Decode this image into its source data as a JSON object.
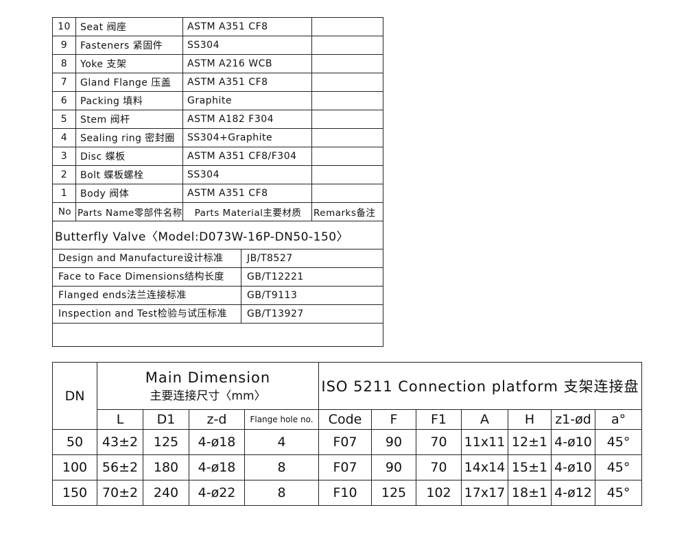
{
  "parts_table": {
    "rows": [
      {
        "no": "10",
        "name": "Seat 阀座",
        "material": "ASTM A351 CF8",
        "remarks": ""
      },
      {
        "no": "9",
        "name": "Fasteners 紧固件",
        "material": "SS304",
        "remarks": ""
      },
      {
        "no": "8",
        "name": "Yoke 支架",
        "material": "ASTM A216 WCB",
        "remarks": ""
      },
      {
        "no": "7",
        "name": "Gland Flange 压盖",
        "material": "ASTM A351 CF8",
        "remarks": ""
      },
      {
        "no": "6",
        "name": "Packing 填料",
        "material": "Graphite",
        "remarks": ""
      },
      {
        "no": "5",
        "name": "Stem 阀杆",
        "material": "ASTM A182 F304",
        "remarks": ""
      },
      {
        "no": "4",
        "name": "Sealing ring 密封圈",
        "material": "SS304+Graphite",
        "remarks": ""
      },
      {
        "no": "3",
        "name": "Disc 蝶板",
        "material": "ASTM A351 CF8/F304",
        "remarks": ""
      },
      {
        "no": "2",
        "name": "Bolt 蝶板螺栓",
        "material": "SS304",
        "remarks": ""
      },
      {
        "no": "1",
        "name": "Body 阀体",
        "material": "ASTM A351 CF8",
        "remarks": ""
      }
    ],
    "header": {
      "no": "No",
      "name": "Parts Name零部件名称",
      "material": "Parts Material主要材质",
      "remarks": "Remarks备注"
    },
    "title": "Butterfly Valve〈Model:D073W-16P-DN50-150〉",
    "standards": [
      {
        "label": "Design and Manufacture设计标准",
        "value": "JB/T8527"
      },
      {
        "label": "Face to Face Dimensions结构长度",
        "value": "GB/T12221"
      },
      {
        "label": "Flanged ends法兰连接标准",
        "value": "GB/T9113"
      },
      {
        "label": "Inspection and Test检验与试压标准",
        "value": "GB/T13927"
      }
    ]
  },
  "dimension_table": {
    "dn_label": "DN",
    "main_dimension_title": "Main Dimension",
    "main_dimension_subtitle": "主要连接尺寸〈mm〉",
    "iso_title": "ISO 5211 Connection platform 支架连接盘",
    "columns": [
      "L",
      "D1",
      "z-d",
      "Flange hole no.",
      "Code",
      "F",
      "F1",
      "A",
      "H",
      "z1-ød",
      "a°"
    ],
    "rows": [
      [
        "50",
        "43±2",
        "125",
        "4-ø18",
        "4",
        "F07",
        "90",
        "70",
        "11x11",
        "12±1",
        "4-ø10",
        "45°"
      ],
      [
        "100",
        "56±2",
        "180",
        "4-ø18",
        "8",
        "F07",
        "90",
        "70",
        "14x14",
        "15±1",
        "4-ø10",
        "45°"
      ],
      [
        "150",
        "70±2",
        "240",
        "4-ø22",
        "8",
        "F10",
        "125",
        "102",
        "17x17",
        "18±1",
        "4-ø12",
        "45°"
      ]
    ]
  }
}
